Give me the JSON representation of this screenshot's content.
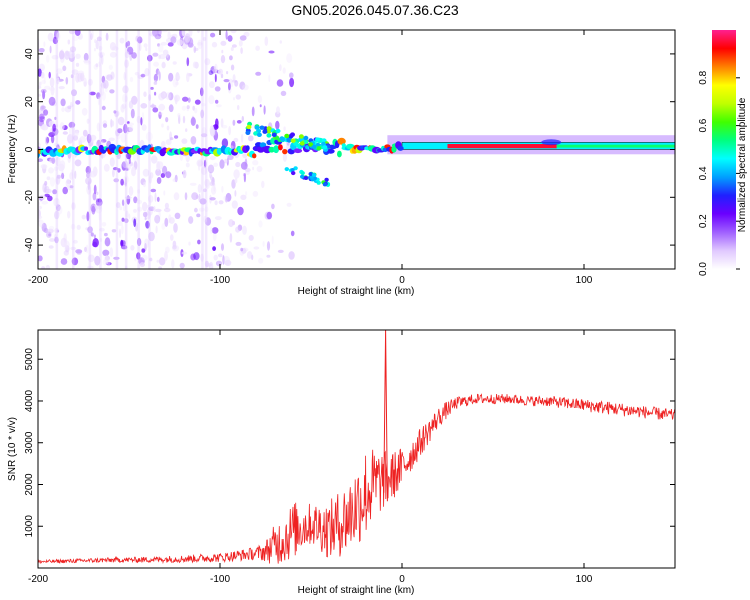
{
  "title": "GN05.2026.045.07.36.C23",
  "colors": {
    "background": "#ffffff",
    "axis": "#000000",
    "snr_line": "#ee2222",
    "band_outline": "#222222",
    "colormap": [
      "#ffffff",
      "#e0c8ff",
      "#a060ff",
      "#6a00ff",
      "#2020ff",
      "#00a0ff",
      "#00ffff",
      "#00ff80",
      "#40ff00",
      "#c0ff00",
      "#ffff00",
      "#ff8000",
      "#ff0000",
      "#ff2090"
    ]
  },
  "chart_data": [
    {
      "type": "heatmap",
      "name": "spectrogram",
      "xlabel": "Height of straight line (km)",
      "ylabel": "Frequency (Hz)",
      "xlim": [
        -200,
        150
      ],
      "ylim": [
        -50,
        50
      ],
      "x_ticks": [
        -200,
        -100,
        0,
        100
      ],
      "y_ticks": [
        -40,
        -20,
        0,
        20,
        40
      ],
      "colorbar": {
        "label": "Normalized spectral amplitude",
        "range": [
          0,
          1
        ],
        "ticks": [
          0.0,
          0.2,
          0.4,
          0.6,
          0.8
        ]
      },
      "features": [
        {
          "description": "noisy scattered power",
          "x_range": [
            -200,
            -85
          ],
          "y_range": [
            -50,
            50
          ]
        },
        {
          "description": "carrier track",
          "x_points": [
            -200,
            -150,
            -100,
            -80,
            -60,
            -40,
            -20,
            0,
            50,
            150
          ],
          "y_points": [
            -1,
            0,
            -1,
            0,
            2,
            1,
            0,
            1,
            1,
            1
          ]
        },
        {
          "description": "strong band",
          "x_range": [
            0,
            150
          ],
          "y_range": [
            0,
            3
          ]
        }
      ]
    },
    {
      "type": "line",
      "name": "snr",
      "xlabel": "Height of straight line (km)",
      "ylabel": "SNR (10 * v/v)",
      "xlim": [
        -200,
        150
      ],
      "ylim": [
        0,
        5700
      ],
      "x_ticks": [
        -200,
        -100,
        0,
        100
      ],
      "y_ticks": [
        1000,
        2000,
        3000,
        4000,
        5000
      ],
      "series": [
        {
          "name": "SNR",
          "x": [
            -200,
            -180,
            -160,
            -140,
            -120,
            -100,
            -90,
            -80,
            -75,
            -70,
            -65,
            -60,
            -55,
            -50,
            -45,
            -40,
            -35,
            -30,
            -25,
            -20,
            -15,
            -10,
            -5,
            0,
            5,
            10,
            15,
            20,
            25,
            30,
            40,
            50,
            60,
            70,
            80,
            90,
            100,
            110,
            120,
            130,
            140,
            150
          ],
          "y": [
            150,
            170,
            190,
            200,
            220,
            250,
            300,
            350,
            400,
            550,
            700,
            900,
            1000,
            1050,
            1000,
            900,
            1050,
            1200,
            1500,
            1800,
            2000,
            2100,
            2200,
            2400,
            2700,
            3000,
            3300,
            3600,
            3800,
            3950,
            4050,
            4050,
            4050,
            4000,
            4000,
            3950,
            3900,
            3850,
            3800,
            3750,
            3700,
            3650
          ],
          "noise": [
            40,
            50,
            60,
            70,
            90,
            110,
            130,
            160,
            250,
            500,
            600,
            700,
            600,
            500,
            600,
            700,
            800,
            900,
            1000,
            1100,
            900,
            700,
            600,
            500,
            400,
            350,
            300,
            250,
            200,
            150,
            120,
            120,
            120,
            120,
            130,
            140,
            150,
            160,
            160,
            150,
            150,
            150
          ]
        }
      ],
      "annotations": [
        {
          "description": "spike",
          "x": -9,
          "y": 5700
        }
      ]
    }
  ]
}
